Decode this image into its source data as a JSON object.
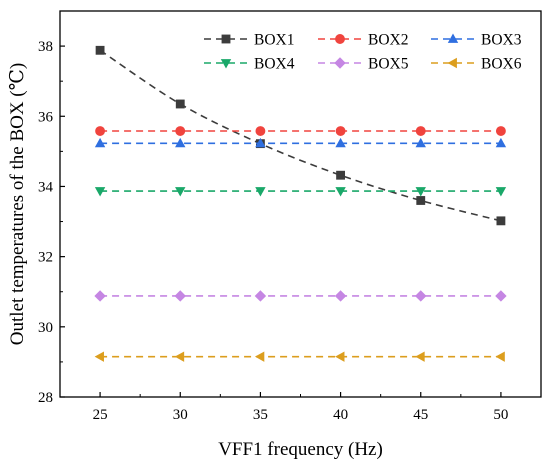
{
  "chart_data": {
    "type": "line",
    "xlabel": "VFF1 frequency (Hz)",
    "ylabel": "Outlet temperatures of the BOX (℃)",
    "xlim": [
      22.5,
      52.5
    ],
    "ylim": [
      28,
      39
    ],
    "x": [
      25,
      30,
      35,
      40,
      45,
      50
    ],
    "x_tick_labels": [
      "25",
      "30",
      "35",
      "40",
      "45",
      "50"
    ],
    "y_ticks": [
      28,
      30,
      32,
      34,
      36,
      38
    ],
    "y_tick_labels": [
      "28",
      "30",
      "32",
      "34",
      "36",
      "38"
    ],
    "grid": false,
    "legend_position": "top-right",
    "line_style": "dashed",
    "series": [
      {
        "name": "BOX1",
        "color": "#3c3c3c",
        "marker": "square",
        "values": [
          37.88,
          36.35,
          35.22,
          34.32,
          33.6,
          33.02
        ]
      },
      {
        "name": "BOX2",
        "color": "#f0443e",
        "marker": "circle",
        "values": [
          35.58,
          35.58,
          35.58,
          35.58,
          35.58,
          35.58
        ]
      },
      {
        "name": "BOX3",
        "color": "#2f6fe0",
        "marker": "triangle-up",
        "values": [
          35.23,
          35.23,
          35.23,
          35.23,
          35.23,
          35.23
        ]
      },
      {
        "name": "BOX4",
        "color": "#1aa869",
        "marker": "triangle-down",
        "values": [
          33.87,
          33.87,
          33.87,
          33.87,
          33.87,
          33.87
        ]
      },
      {
        "name": "BOX5",
        "color": "#c586e3",
        "marker": "diamond",
        "values": [
          30.88,
          30.88,
          30.88,
          30.88,
          30.88,
          30.88
        ]
      },
      {
        "name": "BOX6",
        "color": "#dc9e1e",
        "marker": "triangle-left",
        "values": [
          29.15,
          29.15,
          29.15,
          29.15,
          29.15,
          29.15
        ]
      }
    ]
  }
}
